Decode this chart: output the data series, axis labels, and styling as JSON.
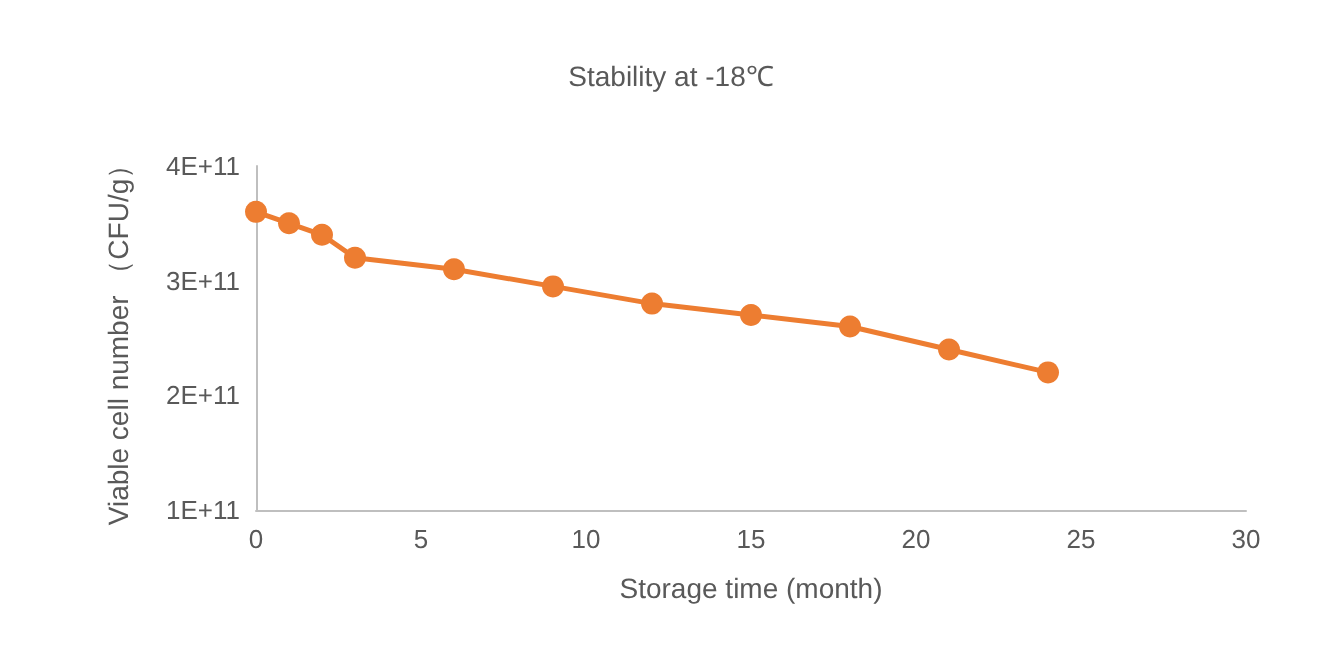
{
  "chart_data": {
    "type": "line",
    "title": "Stability at -18℃",
    "xlabel": "Storage time (month)",
    "ylabel": "Viable cell number （CFU/g）",
    "x": [
      0,
      1,
      2,
      3,
      6,
      9,
      12,
      15,
      18,
      21,
      24
    ],
    "series": [
      {
        "color": "#ed7d31",
        "values": [
          360000000000,
          350000000000,
          340000000000,
          320000000000,
          310000000000,
          295000000000,
          280000000000,
          270000000000,
          260000000000,
          240000000000,
          220000000000
        ]
      }
    ],
    "xlim": [
      0,
      30
    ],
    "xticks": [
      0,
      5,
      10,
      15,
      20,
      25,
      30
    ],
    "ylim": [
      100000000000,
      400000000000
    ],
    "yticks": [
      {
        "value": 100000000000,
        "label": "1E+11"
      },
      {
        "value": 200000000000,
        "label": "2E+11"
      },
      {
        "value": 300000000000,
        "label": "3E+11"
      },
      {
        "value": 400000000000,
        "label": "4E+11"
      }
    ],
    "grid": false,
    "marker": "circle",
    "line_style": "solid"
  }
}
